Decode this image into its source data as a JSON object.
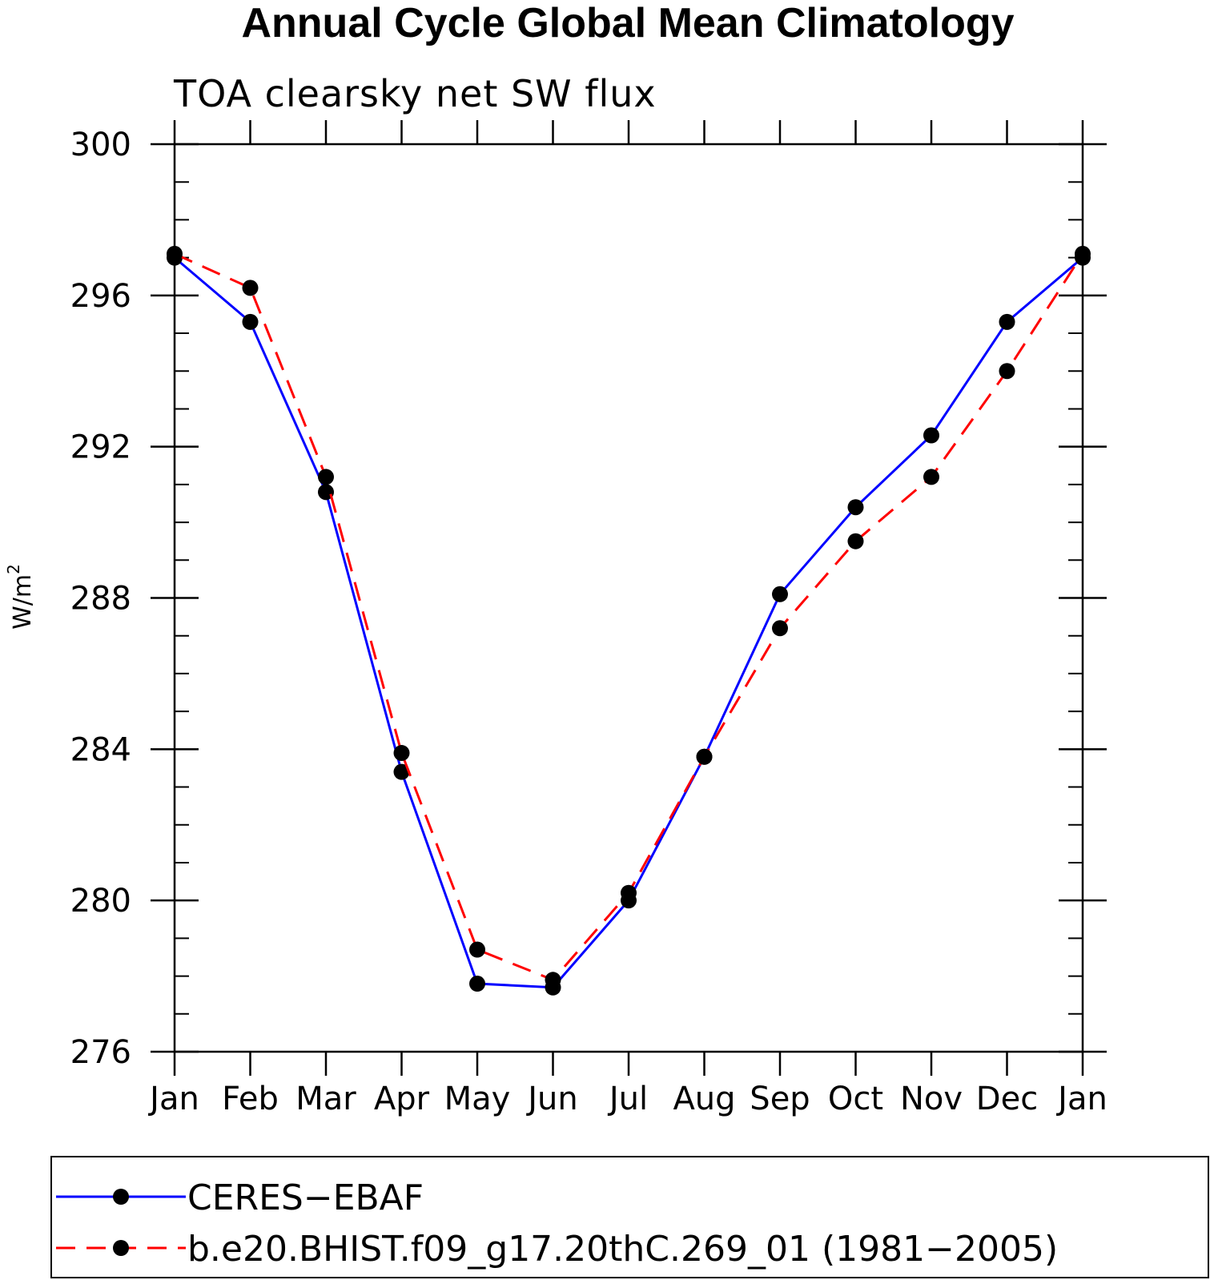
{
  "chart_data": {
    "type": "line",
    "title": "Annual Cycle Global Mean Climatology",
    "subtitle": "TOA clearsky net SW flux",
    "ylabel_base": "W/m",
    "ylabel_sup": "2",
    "xlabel": "",
    "categories": [
      "Jan",
      "Feb",
      "Mar",
      "Apr",
      "May",
      "Jun",
      "Jul",
      "Aug",
      "Sep",
      "Oct",
      "Nov",
      "Dec",
      "Jan"
    ],
    "ylim": [
      276,
      300
    ],
    "yticks": [
      276,
      280,
      284,
      288,
      292,
      296,
      300
    ],
    "grid": false,
    "legend_position": "bottom",
    "series": [
      {
        "name": "CERES−EBAF",
        "color": "#0000ff",
        "dash": "solid",
        "marker": "filled-circle",
        "values": [
          297.0,
          295.3,
          290.8,
          283.4,
          277.8,
          277.7,
          280.0,
          283.8,
          288.1,
          290.4,
          292.3,
          295.3,
          297.0
        ]
      },
      {
        "name": "b.e20.BHIST.f09_g17.20thC.269_01 (1981−2005)",
        "color": "#ff0000",
        "dash": "dashed",
        "marker": "filled-circle",
        "values": [
          297.1,
          296.2,
          291.2,
          283.9,
          278.7,
          277.9,
          280.2,
          283.8,
          287.2,
          289.5,
          291.2,
          294.0,
          297.1
        ]
      }
    ]
  }
}
